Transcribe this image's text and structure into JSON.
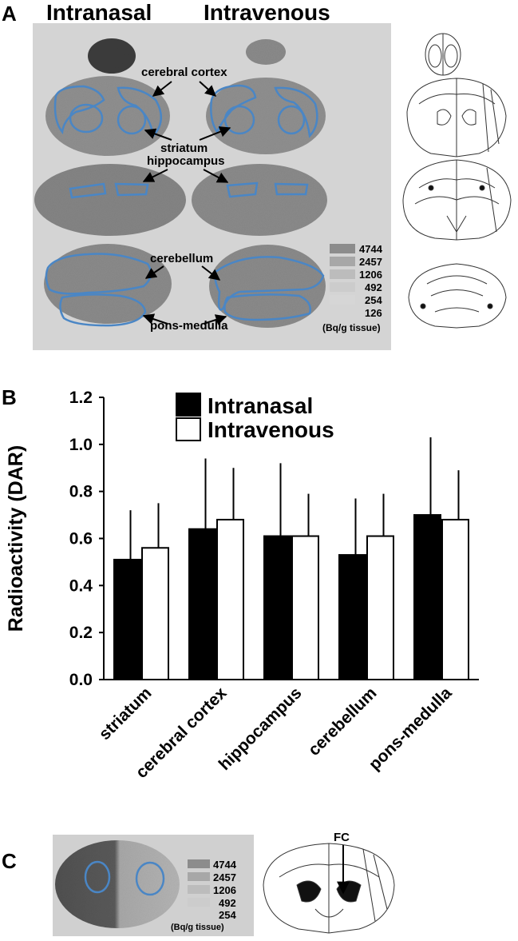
{
  "panel_a": {
    "letter": "A",
    "col_intranasal": "Intranasal",
    "col_intravenous": "Intravenous",
    "labels": {
      "cortex": "cerebral cortex",
      "striatum": "striatum",
      "hippocampus": "hippocampus",
      "cerebellum": "cerebellum",
      "pons": "pons-medulla"
    },
    "scale": {
      "values": [
        "4744",
        "2457",
        "1206",
        "492",
        "254",
        "126"
      ],
      "unit": "(Bq/g tissue)"
    }
  },
  "panel_b": {
    "letter": "B"
  },
  "panel_c": {
    "letter": "C",
    "fc_label": "FC",
    "scale": {
      "values": [
        "4744",
        "2457",
        "1206",
        "492",
        "254"
      ],
      "unit": "(Bq/g tissue)"
    }
  },
  "colors": {
    "intranasal": "#000000",
    "intravenous": "#ffffff",
    "roi": "#4a86c5"
  },
  "chart_data": {
    "type": "bar",
    "title": "",
    "xlabel": "",
    "ylabel": "Radioactivity (DAR)",
    "ylim": [
      0,
      1.2
    ],
    "yticks": [
      "0.0",
      "0.2",
      "0.4",
      "0.6",
      "0.8",
      "1.0",
      "1.2"
    ],
    "categories": [
      "striatum",
      "cerebral cortex",
      "hippocampus",
      "cerebellum",
      "pons-medulla"
    ],
    "series": [
      {
        "name": "Intranasal",
        "values": [
          0.51,
          0.64,
          0.61,
          0.53,
          0.7
        ],
        "errors": [
          0.21,
          0.3,
          0.31,
          0.24,
          0.33
        ]
      },
      {
        "name": "Intravenous",
        "values": [
          0.56,
          0.68,
          0.61,
          0.61,
          0.68
        ],
        "errors": [
          0.19,
          0.22,
          0.18,
          0.18,
          0.21
        ]
      }
    ],
    "legend": "top"
  }
}
